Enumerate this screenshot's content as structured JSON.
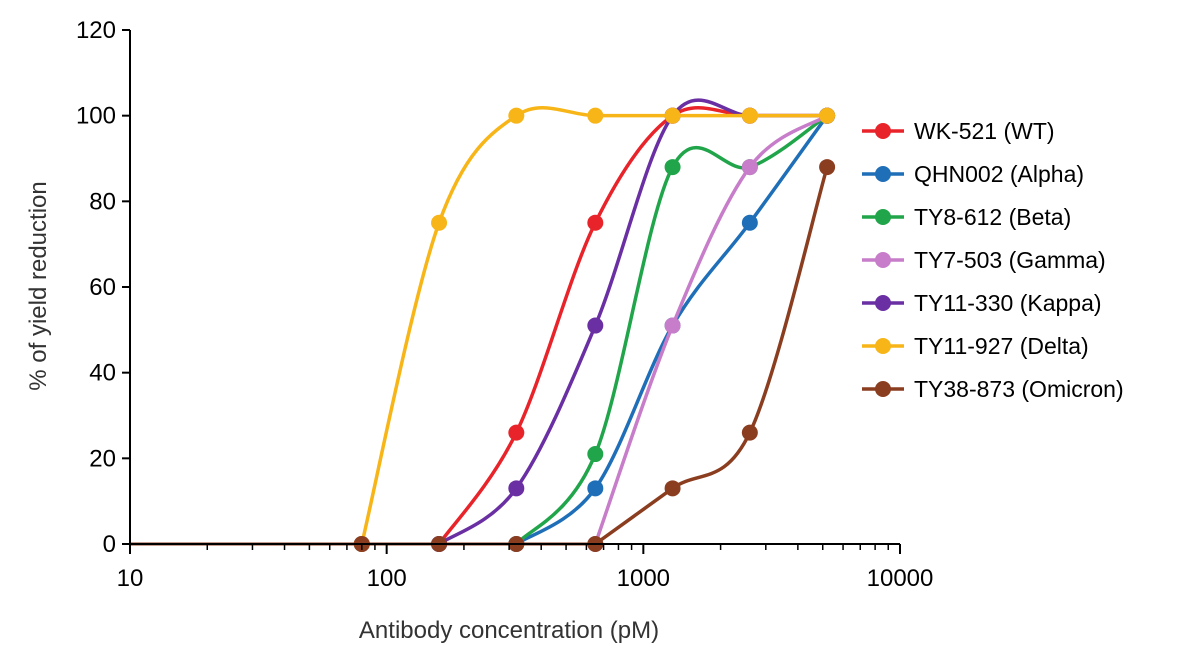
{
  "chart_data": {
    "type": "line",
    "title": "",
    "xlabel": "Antibody concentration (pM)",
    "ylabel": "% of yield reduction",
    "x_scale": "log",
    "xlim": [
      10,
      10000
    ],
    "ylim": [
      0,
      120
    ],
    "x_ticks": [
      "10",
      "100",
      "1000",
      "10000"
    ],
    "y_ticks": [
      "0",
      "20",
      "40",
      "60",
      "80",
      "100",
      "120"
    ],
    "grid": false,
    "legend_position": "right",
    "series": [
      {
        "name": "WK-521 (WT)",
        "color": "#e8242a",
        "points": [
          [
            80,
            0
          ],
          [
            160,
            0
          ],
          [
            320,
            26
          ],
          [
            650,
            75
          ],
          [
            1300,
            100
          ],
          [
            2600,
            100
          ],
          [
            5200,
            100
          ]
        ]
      },
      {
        "name": "QHN002 (Alpha)",
        "color": "#1f6fb8",
        "points": [
          [
            80,
            0
          ],
          [
            160,
            0
          ],
          [
            320,
            0
          ],
          [
            650,
            13
          ],
          [
            1300,
            51
          ],
          [
            2600,
            75
          ],
          [
            5200,
            100
          ]
        ]
      },
      {
        "name": "TY8-612 (Beta)",
        "color": "#21a54a",
        "points": [
          [
            80,
            0
          ],
          [
            160,
            0
          ],
          [
            320,
            0
          ],
          [
            650,
            21
          ],
          [
            1300,
            88
          ],
          [
            2600,
            88
          ],
          [
            5200,
            100
          ]
        ]
      },
      {
        "name": "TY7-503 (Gamma)",
        "color": "#c77dc9",
        "points": [
          [
            80,
            0
          ],
          [
            160,
            0
          ],
          [
            320,
            0
          ],
          [
            650,
            0
          ],
          [
            1300,
            51
          ],
          [
            2600,
            88
          ],
          [
            5200,
            100
          ]
        ]
      },
      {
        "name": "TY11-330 (Kappa)",
        "color": "#6a2fa3",
        "points": [
          [
            80,
            0
          ],
          [
            160,
            0
          ],
          [
            320,
            13
          ],
          [
            650,
            51
          ],
          [
            1300,
            100
          ],
          [
            2600,
            100
          ],
          [
            5200,
            100
          ]
        ]
      },
      {
        "name": "TY11-927 (Delta)",
        "color": "#f7b517",
        "points": [
          [
            80,
            0
          ],
          [
            160,
            75
          ],
          [
            320,
            100
          ],
          [
            650,
            100
          ],
          [
            1300,
            100
          ],
          [
            2600,
            100
          ],
          [
            5200,
            100
          ]
        ]
      },
      {
        "name": "TY38-873 (Omicron)",
        "color": "#8b3d1f",
        "points": [
          [
            80,
            0
          ],
          [
            160,
            0
          ],
          [
            320,
            0
          ],
          [
            650,
            0
          ],
          [
            1300,
            13
          ],
          [
            2600,
            26
          ],
          [
            5200,
            88
          ]
        ]
      }
    ]
  }
}
